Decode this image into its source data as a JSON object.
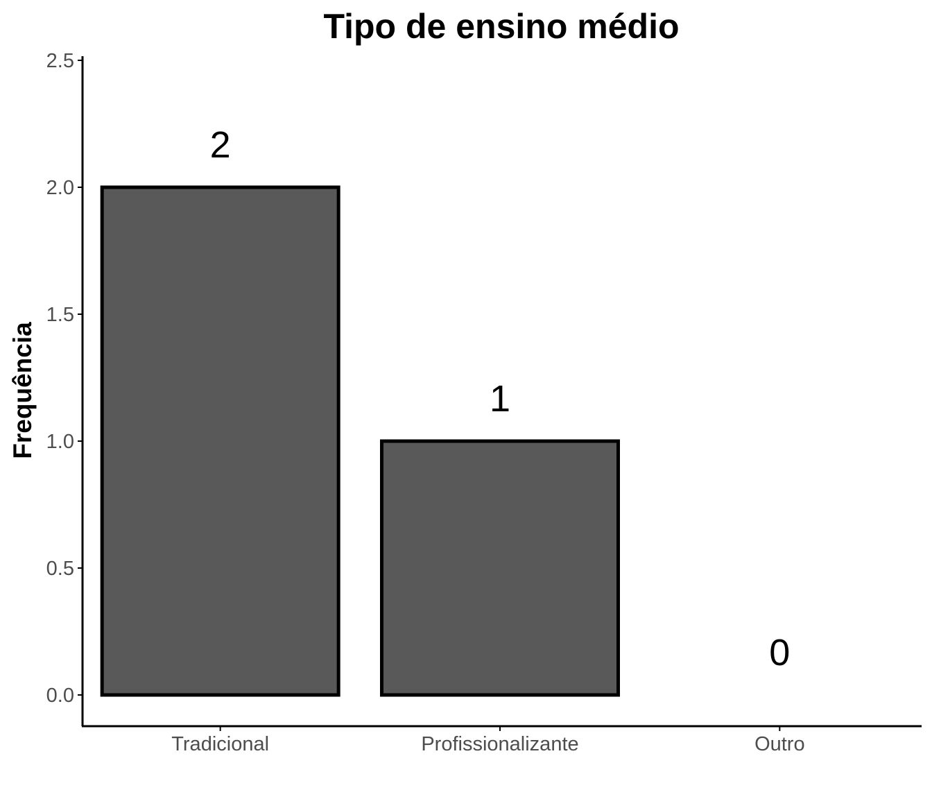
{
  "chart_data": {
    "type": "bar",
    "title": "Tipo de ensino médio",
    "xlabel": "",
    "ylabel": "Frequência",
    "categories": [
      "Tradicional",
      "Profissionalizante",
      "Outro"
    ],
    "values": [
      2,
      1,
      0
    ],
    "data_labels": [
      "2",
      "1",
      "0"
    ],
    "ylim": [
      -0.12,
      2.5
    ],
    "yticks": [
      "0.0",
      "0.5",
      "1.0",
      "1.5",
      "2.0",
      "2.5"
    ],
    "grid": false,
    "legend": "none",
    "colors": {
      "bar_fill": "#595959",
      "bar_stroke": "#000000",
      "axis": "#000000",
      "tick_text": "#4d4d4d"
    }
  }
}
